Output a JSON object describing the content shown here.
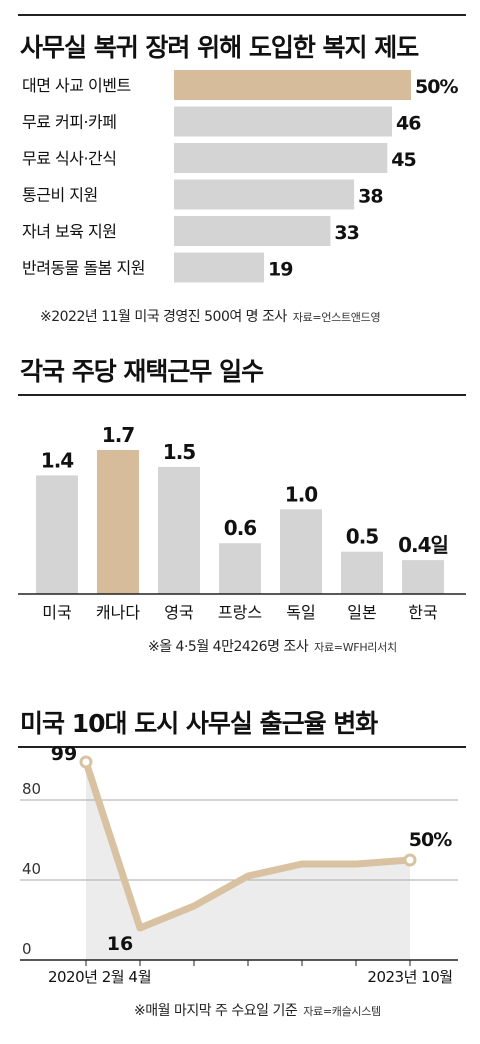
{
  "colors": {
    "bar": "#d4d4d4",
    "highlight": "#d6bc9a",
    "line": "#d9c2a2",
    "area": "#ececec",
    "axis": "#222222"
  },
  "section1": {
    "title": "사무실 복귀 장려 위해 도입한 복지 제도",
    "note": "※2022년 11월 미국 경영진 500여 명 조사",
    "source": "자료=언스트앤드영"
  },
  "section2": {
    "title": "각국 주당 재택근무 일수",
    "note": "※올 4·5월 4만2426명 조사",
    "source": "자료=WFH리서치"
  },
  "section3": {
    "title": "미국 10대 도시 사무실 출근율 변화",
    "note": "※매월 마지막 주 수요일 기준",
    "source": "자료=캐슬시스템"
  },
  "chart_data": [
    {
      "type": "bar",
      "orientation": "horizontal",
      "title": "사무실 복귀 장려 위해 도입한 복지 제도",
      "categories": [
        "대면 사교 이벤트",
        "무료 커피·카페",
        "무료 식사·간식",
        "통근비 지원",
        "자녀 보육 지원",
        "반려동물 돌봄 지원"
      ],
      "values": [
        50,
        46,
        45,
        38,
        33,
        19
      ],
      "value_labels": [
        "50%",
        "46",
        "45",
        "38",
        "33",
        "19"
      ],
      "highlight_index": 0,
      "xlim": [
        0,
        50
      ]
    },
    {
      "type": "bar",
      "orientation": "vertical",
      "title": "각국 주당 재택근무 일수",
      "categories": [
        "미국",
        "캐나다",
        "영국",
        "프랑스",
        "독일",
        "일본",
        "한국"
      ],
      "values": [
        1.4,
        1.7,
        1.5,
        0.6,
        1.0,
        0.5,
        0.4
      ],
      "value_labels": [
        "1.4",
        "1.7",
        "1.5",
        "0.6",
        "1.0",
        "0.5",
        "0.4일"
      ],
      "highlight_index": 1,
      "ylim": [
        0,
        1.7
      ]
    },
    {
      "type": "line",
      "title": "미국 10대 도시 사무실 출근율 변화",
      "x": [
        "2020-02",
        "2020-04",
        "",
        "",
        "",
        "",
        "2023-10"
      ],
      "x_tick_labels": [
        "2020년 2월",
        "4월",
        "",
        "",
        "",
        "",
        "2023년 10월"
      ],
      "y": [
        99,
        16,
        27,
        42,
        48,
        48,
        50
      ],
      "point_labels": [
        "99",
        "16",
        "",
        "",
        "",
        "",
        "50%"
      ],
      "y_ticks": [
        0,
        40,
        80
      ],
      "y_tick_labels": [
        "0",
        "40",
        "80"
      ],
      "ylim": [
        0,
        100
      ],
      "grid": true
    }
  ]
}
